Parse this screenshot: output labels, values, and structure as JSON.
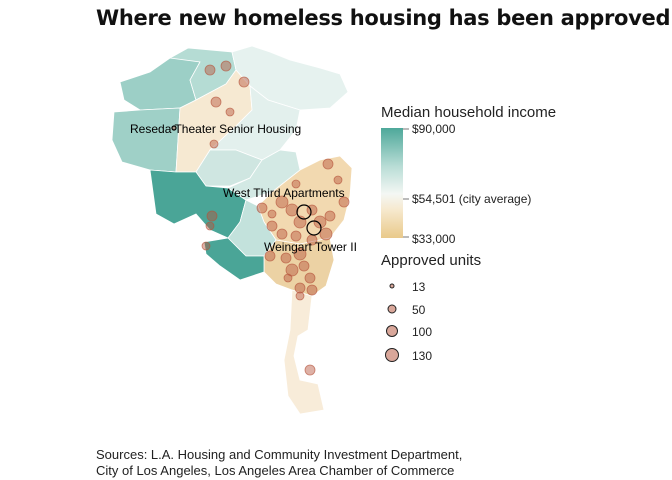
{
  "title": "Where new homeless housing has been approved",
  "legend": {
    "income_title": "Median household income",
    "income_high": "$90,000",
    "income_mid": "$54,501 (city average)",
    "income_low": "$33,000",
    "units_title": "Approved units",
    "units": [
      {
        "label": "13",
        "value": 13
      },
      {
        "label": "50",
        "value": 50
      },
      {
        "label": "100",
        "value": 100
      },
      {
        "label": "130",
        "value": 130
      }
    ]
  },
  "callouts": [
    {
      "label": "Reseda Theater Senior Housing"
    },
    {
      "label": "West Third Apartments"
    },
    {
      "label": "Weingart Tower II"
    }
  ],
  "colors": {
    "income_high": "#4ea89a",
    "income_mid": "#f4f7f4",
    "income_low": "#e9c98a",
    "site_fill": "#b5533a"
  },
  "sources": [
    "Sources: L.A. Housing and Community Investment Department,",
    "City of Los Angeles,  Los Angeles Area Chamber of Commerce"
  ]
}
